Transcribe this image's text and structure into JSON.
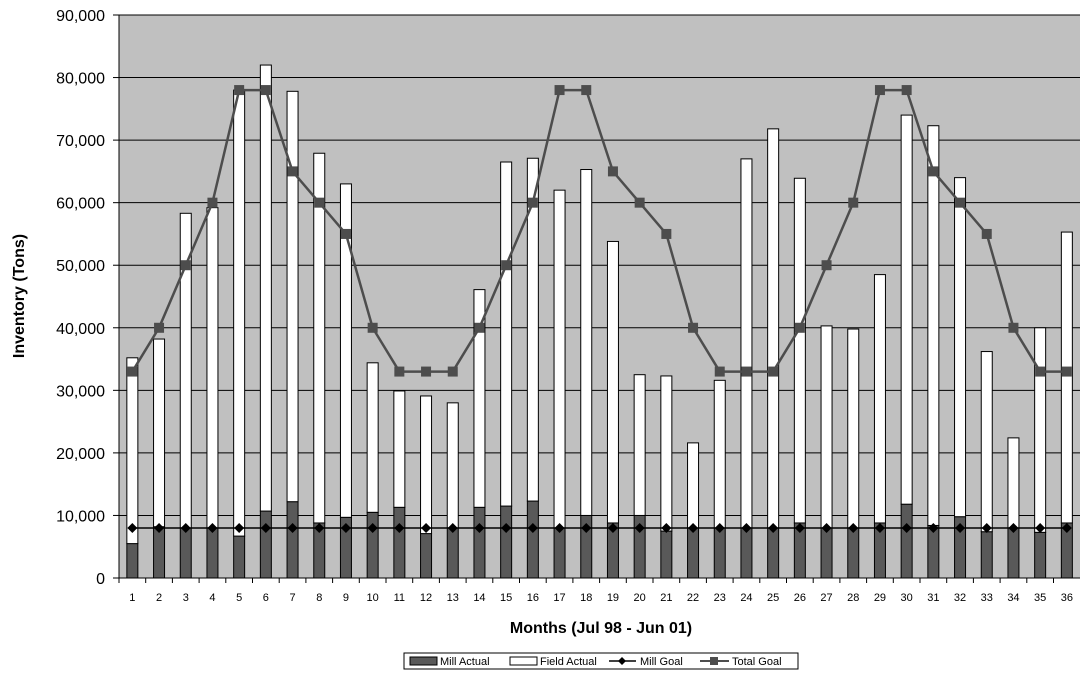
{
  "chart_data": {
    "type": "bar",
    "stacked": true,
    "x": [
      1,
      2,
      3,
      4,
      5,
      6,
      7,
      8,
      9,
      10,
      11,
      12,
      13,
      14,
      15,
      16,
      17,
      18,
      19,
      20,
      21,
      22,
      23,
      24,
      25,
      26,
      27,
      28,
      29,
      30,
      31,
      32,
      33,
      34,
      35,
      36
    ],
    "xlabel": "Months (Jul 98 - Jun 01)",
    "ylabel": "Inventory (Tons)",
    "ylim": [
      0,
      90000
    ],
    "yticks": [
      "0",
      "10,000",
      "20,000",
      "30,000",
      "40,000",
      "50,000",
      "60,000",
      "70,000",
      "80,000",
      "90,000"
    ],
    "grid": true,
    "legend_position": "bottom",
    "series": [
      {
        "name": "Mill Actual",
        "kind": "bar",
        "color": "#595959",
        "values": [
          5500,
          8200,
          8000,
          8000,
          6700,
          10700,
          12200,
          8800,
          9700,
          10500,
          11300,
          7100,
          8000,
          11300,
          11500,
          12300,
          8000,
          10000,
          8800,
          10000,
          7500,
          8000,
          8000,
          8000,
          8000,
          8800,
          8000,
          8000,
          8800,
          11800,
          8400,
          9800,
          7400,
          8000,
          7300,
          8800
        ]
      },
      {
        "name": "Field Actual",
        "kind": "bar",
        "color": "#ffffff",
        "values": [
          29700,
          30000,
          50300,
          51200,
          71300,
          71300,
          65600,
          59100,
          53300,
          23900,
          18600,
          22000,
          20000,
          34800,
          55000,
          54800,
          54000,
          55300,
          45000,
          22500,
          24800,
          13600,
          23600,
          59000,
          63800,
          55100,
          32300,
          31800,
          39700,
          62200,
          63900,
          54200,
          28800,
          14400,
          32700,
          46500
        ]
      },
      {
        "name": "Mill Goal",
        "kind": "line",
        "marker": "diamond",
        "color": "#000000",
        "values": [
          8000,
          8000,
          8000,
          8000,
          8000,
          8000,
          8000,
          8000,
          8000,
          8000,
          8000,
          8000,
          8000,
          8000,
          8000,
          8000,
          8000,
          8000,
          8000,
          8000,
          8000,
          8000,
          8000,
          8000,
          8000,
          8000,
          8000,
          8000,
          8000,
          8000,
          8000,
          8000,
          8000,
          8000,
          8000,
          8000
        ]
      },
      {
        "name": "Total Goal",
        "kind": "line",
        "marker": "square",
        "color": "#4d4d4d",
        "values": [
          33000,
          40000,
          50000,
          60000,
          78000,
          78000,
          65000,
          60000,
          55000,
          40000,
          33000,
          33000,
          33000,
          40000,
          50000,
          60000,
          78000,
          78000,
          65000,
          60000,
          55000,
          40000,
          33000,
          33000,
          33000,
          40000,
          50000,
          60000,
          78000,
          78000,
          65000,
          60000,
          55000,
          40000,
          33000,
          33000
        ]
      }
    ]
  }
}
